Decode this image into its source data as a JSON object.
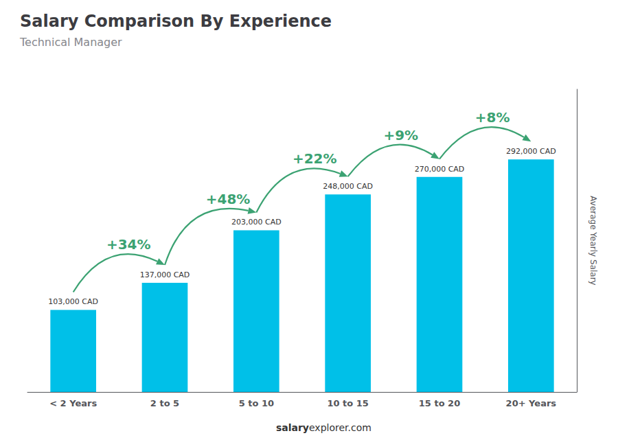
{
  "chart_data": {
    "type": "bar",
    "title": "Salary Comparison By Experience",
    "subtitle": "Technical Manager",
    "ylabel": "Average Yearly Salary",
    "categories": [
      "< 2 Years",
      "2 to 5",
      "5 to 10",
      "10 to 15",
      "15 to 20",
      "20+ Years"
    ],
    "values": [
      103000,
      137000,
      203000,
      248000,
      270000,
      292000
    ],
    "value_labels": [
      "103,000 CAD",
      "137,000 CAD",
      "203,000 CAD",
      "248,000 CAD",
      "270,000 CAD",
      "292,000 CAD"
    ],
    "annotations": [
      "+34%",
      "+48%",
      "+22%",
      "+9%",
      "+8%"
    ],
    "footer": [
      "salary",
      "explorer.com"
    ],
    "color": "#00c0e8",
    "ylim": [
      0,
      380000
    ],
    "tick_labels": "x",
    "data_labels": true,
    "grid": false
  }
}
